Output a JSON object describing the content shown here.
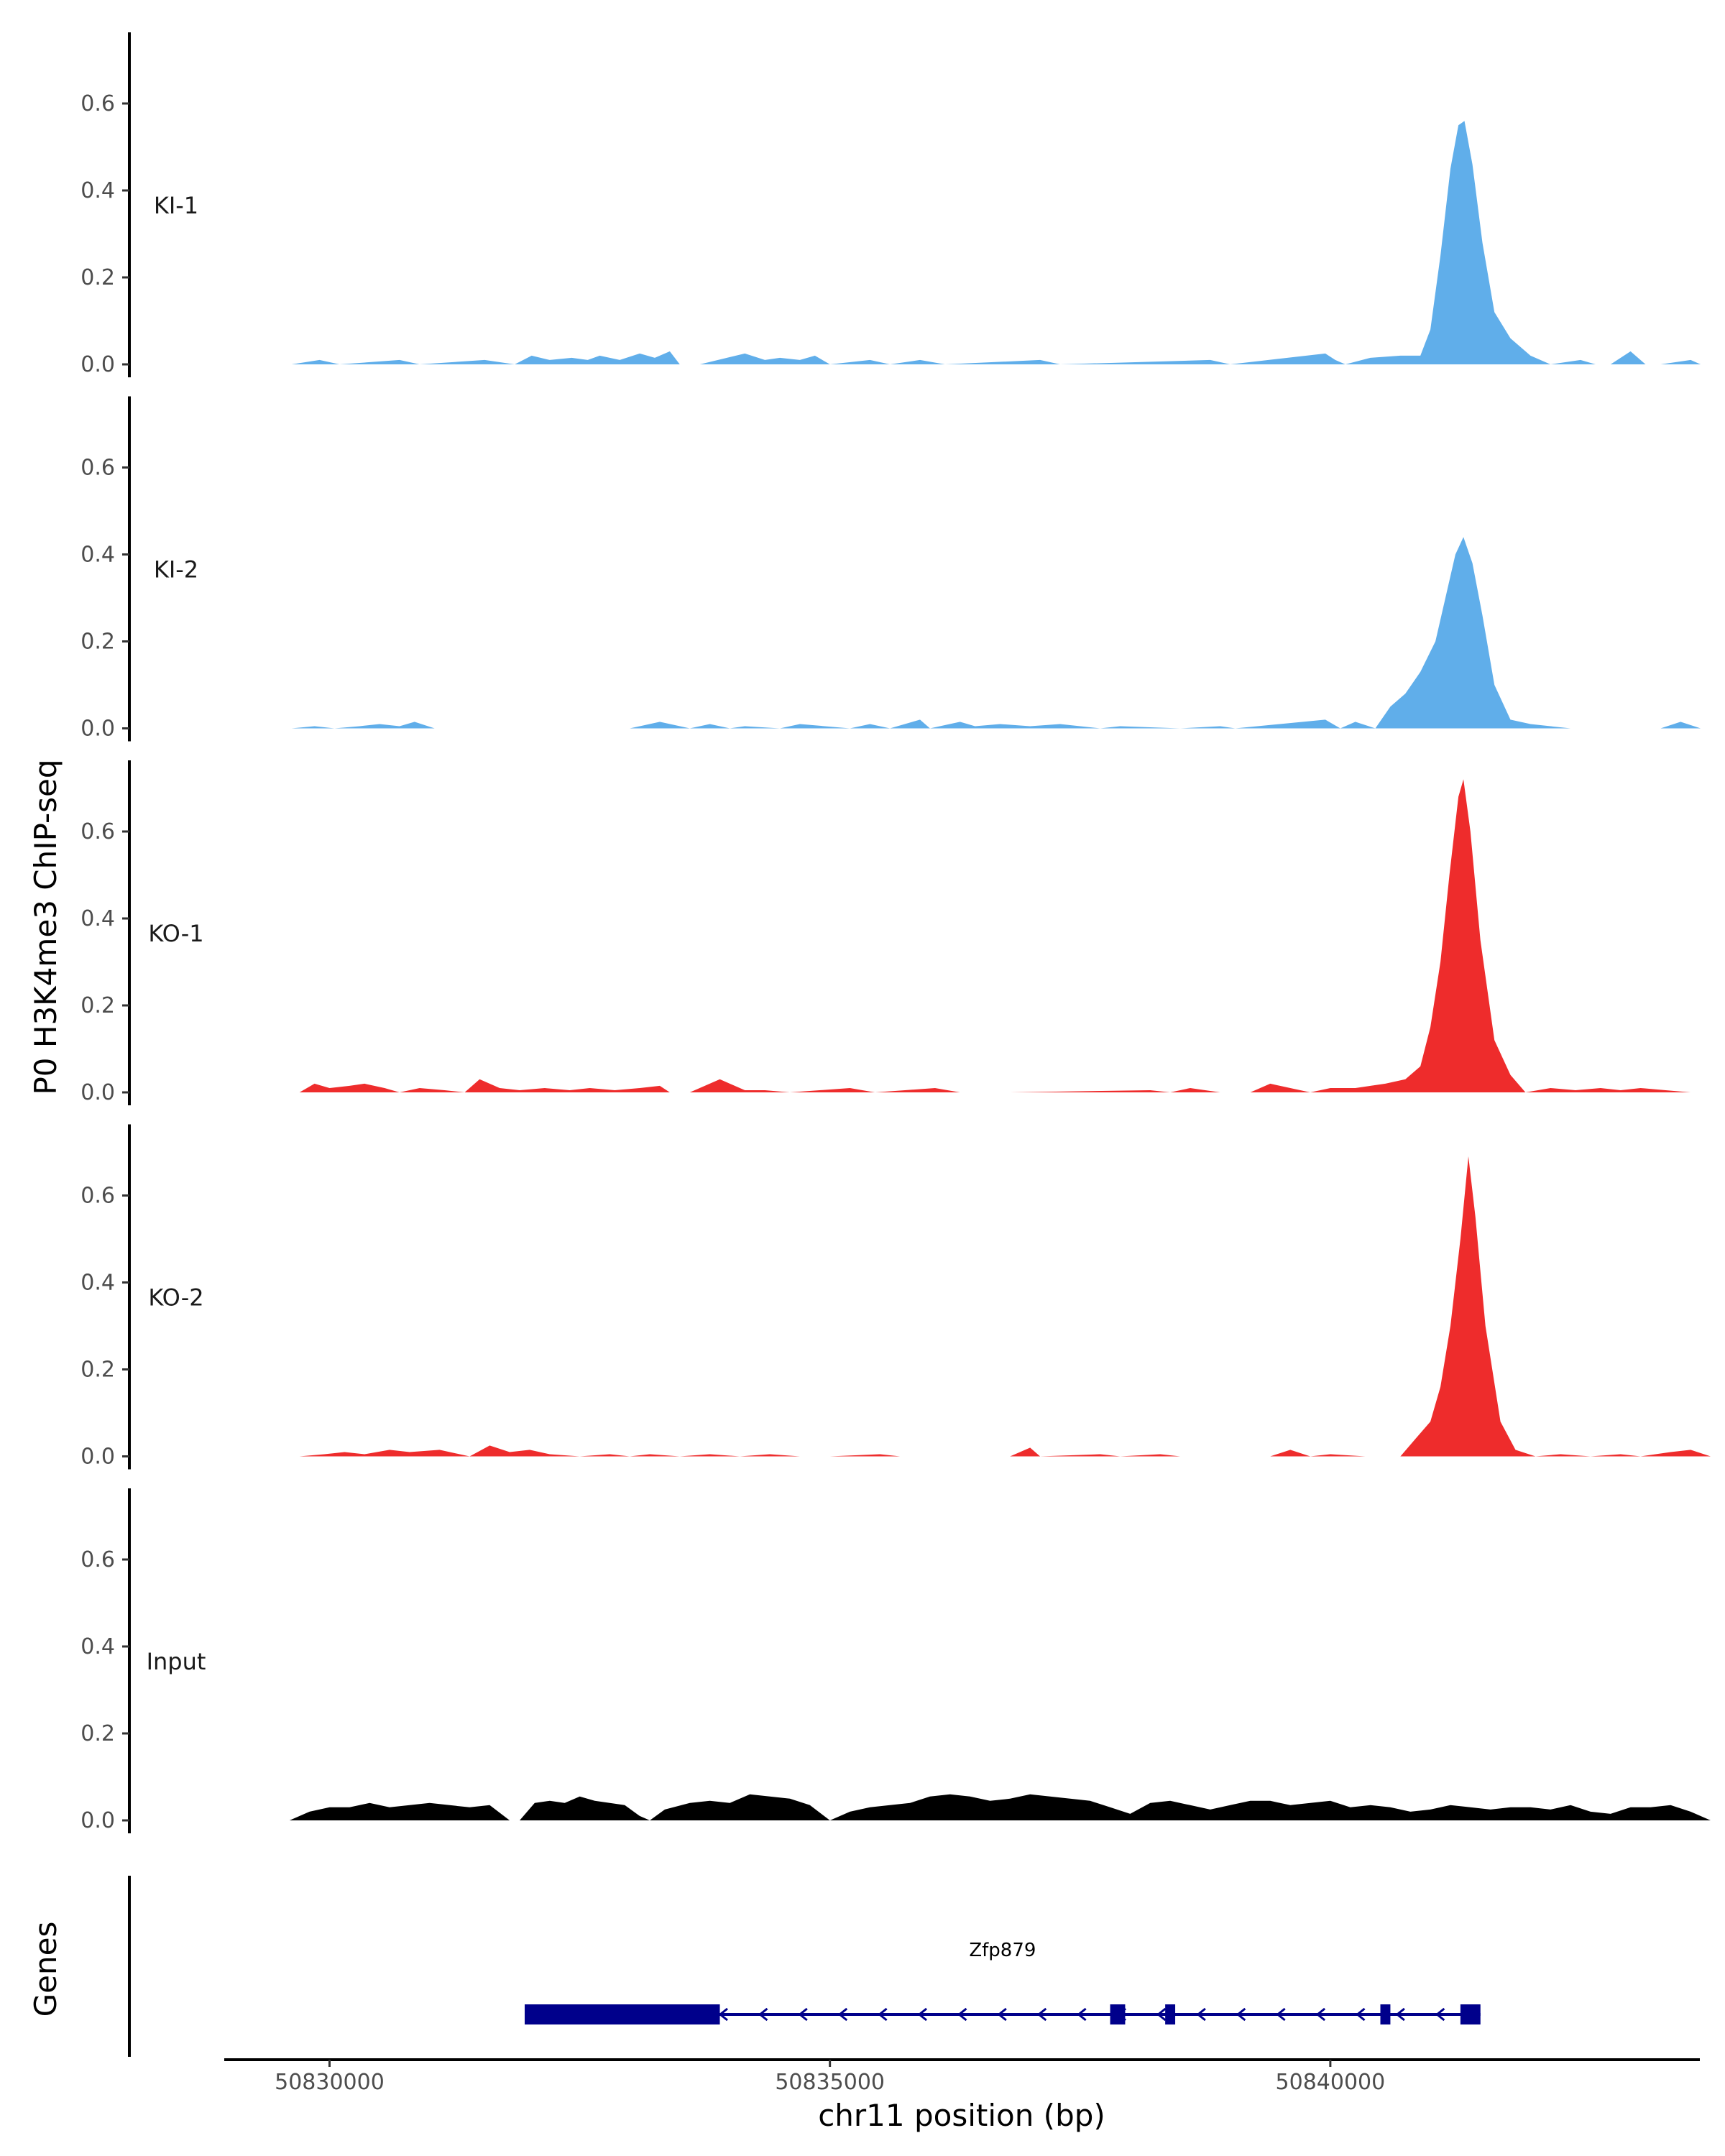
{
  "chart_data": {
    "type": "area",
    "ylabel": "P0 H3K4me3 ChIP-seq",
    "xlabel": "chr11 position (bp)",
    "genes_label": "Genes",
    "xlim": [
      50828000,
      50843800
    ],
    "ylim": [
      0,
      0.75
    ],
    "x_ticks": [
      50830000,
      50835000,
      50840000
    ],
    "x_tick_labels": [
      "50830000",
      "50835000",
      "50840000"
    ],
    "y_ticks": [
      0.0,
      0.2,
      0.4,
      0.6
    ],
    "y_tick_labels": [
      "0.0",
      "0.2",
      "0.4",
      "0.6"
    ],
    "tracks": [
      {
        "name": "KI-1",
        "color": "#60aeea",
        "x": [
          50829620,
          50829900,
          50830100,
          50830700,
          50830900,
          50831550,
          50831850,
          50832020,
          50832200,
          50832420,
          50832580,
          50832700,
          50832900,
          50833100,
          50833250,
          50833400,
          50833500,
          50833550,
          50833700,
          50834150,
          50834350,
          50834500,
          50834700,
          50834850,
          50835000,
          50835400,
          50835600,
          50835900,
          50836150,
          50837100,
          50837300,
          50838800,
          50839000,
          50839950,
          50840050,
          50840150,
          50840400,
          50840700,
          50840900,
          50841000,
          50841100,
          50841200,
          50841280,
          50841340,
          50841420,
          50841520,
          50841640,
          50841800,
          50842000,
          50842200,
          50842500,
          50842650,
          50842800,
          50843000,
          50843150,
          50843300,
          50843600,
          50843700,
          50843800
        ],
        "y": [
          0.0,
          0.01,
          0.0,
          0.01,
          0.0,
          0.01,
          0.0,
          0.02,
          0.01,
          0.015,
          0.01,
          0.02,
          0.01,
          0.025,
          0.015,
          0.03,
          0.0,
          0.0,
          0.0,
          0.025,
          0.01,
          0.015,
          0.01,
          0.02,
          0.0,
          0.01,
          0.0,
          0.01,
          0.0,
          0.01,
          0.0,
          0.01,
          0.0,
          0.025,
          0.01,
          0.0,
          0.015,
          0.02,
          0.02,
          0.08,
          0.25,
          0.45,
          0.55,
          0.56,
          0.46,
          0.28,
          0.12,
          0.06,
          0.02,
          0.0,
          0.01,
          0.0,
          0.0,
          0.03,
          0.0,
          0.0,
          0.01,
          0.0,
          0.0
        ]
      },
      {
        "name": "KI-2",
        "color": "#60aeea",
        "x": [
          50829620,
          50829850,
          50830050,
          50830300,
          50830500,
          50830700,
          50830850,
          50831050,
          50831700,
          50831850,
          50832200,
          50832400,
          50832700,
          50832850,
          50833000,
          50833300,
          50833600,
          50833800,
          50834000,
          50834150,
          50834500,
          50834700,
          50835200,
          50835400,
          50835600,
          50835900,
          50836000,
          50836300,
          50836450,
          50836700,
          50837000,
          50837300,
          50837700,
          50837900,
          50838500,
          50838900,
          50839050,
          50839950,
          50840100,
          50840250,
          50840450,
          50840600,
          50840750,
          50840900,
          50841050,
          50841150,
          50841250,
          50841330,
          50841420,
          50841520,
          50841640,
          50841800,
          50842000,
          50842200,
          50842400,
          50842600,
          50843300,
          50843500,
          50843700
        ],
        "y": [
          0.0,
          0.005,
          0.0,
          0.005,
          0.01,
          0.005,
          0.015,
          0.0,
          0.0,
          0.0,
          0.0,
          0.0,
          0.0,
          0.0,
          0.0,
          0.015,
          0.0,
          0.01,
          0.0,
          0.005,
          0.0,
          0.01,
          0.0,
          0.01,
          0.0,
          0.02,
          0.0,
          0.015,
          0.005,
          0.01,
          0.005,
          0.01,
          0.0,
          0.005,
          0.0,
          0.005,
          0.0,
          0.02,
          0.0,
          0.015,
          0.0,
          0.05,
          0.08,
          0.13,
          0.2,
          0.3,
          0.4,
          0.44,
          0.38,
          0.26,
          0.1,
          0.02,
          0.01,
          0.005,
          0.0,
          0.0,
          0.0,
          0.015,
          0.0
        ]
      },
      {
        "name": "KO-1",
        "color": "#ee2c2c",
        "x": [
          50829700,
          50829850,
          50830000,
          50830200,
          50830350,
          50830550,
          50830700,
          50830900,
          50831150,
          50831350,
          50831500,
          50831700,
          50831900,
          50832150,
          50832400,
          50832600,
          50832850,
          50833100,
          50833300,
          50833400,
          50833600,
          50833900,
          50834000,
          50834150,
          50834350,
          50834600,
          50835200,
          50835450,
          50835750,
          50836050,
          50836300,
          50836500,
          50836800,
          50838200,
          50838400,
          50838600,
          50838900,
          50839200,
          50839400,
          50839600,
          50839800,
          50840000,
          50840250,
          50840550,
          50840750,
          50840900,
          50841000,
          50841100,
          50841190,
          50841280,
          50841330,
          50841400,
          50841500,
          50841640,
          50841800,
          50841950,
          50842200,
          50842450,
          50842700,
          50842900,
          50843100,
          50843350,
          50843600,
          50843800
        ],
        "y": [
          0.0,
          0.02,
          0.01,
          0.015,
          0.02,
          0.01,
          0.0,
          0.01,
          0.005,
          0.0,
          0.03,
          0.01,
          0.005,
          0.01,
          0.005,
          0.01,
          0.005,
          0.01,
          0.015,
          0.0,
          0.0,
          0.03,
          0.02,
          0.005,
          0.005,
          0.0,
          0.01,
          0.0,
          0.005,
          0.01,
          0.0,
          0.0,
          0.0,
          0.005,
          0.0,
          0.01,
          0.0,
          0.0,
          0.02,
          0.01,
          0.0,
          0.01,
          0.01,
          0.02,
          0.03,
          0.06,
          0.15,
          0.3,
          0.5,
          0.68,
          0.72,
          0.6,
          0.35,
          0.12,
          0.04,
          0.0,
          0.01,
          0.005,
          0.01,
          0.005,
          0.01,
          0.005,
          0.0,
          0.0
        ]
      },
      {
        "name": "KO-2",
        "color": "#ee2c2c",
        "x": [
          50829700,
          50829950,
          50830150,
          50830350,
          50830600,
          50830800,
          50831100,
          50831400,
          50831600,
          50831800,
          50832000,
          50832200,
          50832500,
          50832800,
          50833000,
          50833200,
          50833500,
          50833800,
          50834100,
          50834400,
          50834700,
          50835000,
          50835500,
          50835700,
          50835900,
          50836800,
          50837000,
          50837100,
          50837700,
          50837900,
          50838300,
          50838500,
          50839400,
          50839600,
          50839800,
          50840000,
          50840350,
          50840700,
          50840850,
          50841000,
          50841100,
          50841200,
          50841300,
          50841380,
          50841450,
          50841550,
          50841700,
          50841850,
          50842050,
          50842300,
          50842600,
          50842900,
          50843100,
          50843400,
          50843600,
          50843800
        ],
        "y": [
          0.0,
          0.005,
          0.01,
          0.005,
          0.015,
          0.01,
          0.015,
          0.0,
          0.025,
          0.01,
          0.015,
          0.005,
          0.0,
          0.005,
          0.0,
          0.005,
          0.0,
          0.005,
          0.0,
          0.005,
          0.0,
          0.0,
          0.005,
          0.0,
          0.0,
          0.0,
          0.02,
          0.0,
          0.005,
          0.0,
          0.005,
          0.0,
          0.0,
          0.015,
          0.0,
          0.005,
          0.0,
          0.0,
          0.04,
          0.08,
          0.16,
          0.3,
          0.5,
          0.69,
          0.55,
          0.3,
          0.08,
          0.015,
          0.0,
          0.005,
          0.0,
          0.005,
          0.0,
          0.01,
          0.015,
          0.0
        ]
      },
      {
        "name": "Input",
        "color": "#000000",
        "x": [
          50829600,
          50829800,
          50830000,
          50830200,
          50830400,
          50830600,
          50830800,
          50831000,
          50831200,
          50831400,
          50831600,
          50831800,
          50831900,
          50832050,
          50832200,
          50832350,
          50832500,
          50832650,
          50832800,
          50832950,
          50833100,
          50833200,
          50833350,
          50833600,
          50833800,
          50834000,
          50834200,
          50834400,
          50834600,
          50834800,
          50835000,
          50835200,
          50835400,
          50835600,
          50835800,
          50836000,
          50836200,
          50836400,
          50836600,
          50836800,
          50837000,
          50837200,
          50837400,
          50837600,
          50837800,
          50838000,
          50838200,
          50838400,
          50838600,
          50838800,
          50839000,
          50839200,
          50839400,
          50839600,
          50839800,
          50840000,
          50840200,
          50840400,
          50840600,
          50840800,
          50841000,
          50841200,
          50841400,
          50841600,
          50841800,
          50842000,
          50842200,
          50842400,
          50842600,
          50842800,
          50843000,
          50843200,
          50843400,
          50843600,
          50843800
        ],
        "y": [
          0.0,
          0.02,
          0.03,
          0.03,
          0.04,
          0.03,
          0.035,
          0.04,
          0.035,
          0.03,
          0.035,
          0.0,
          0.0,
          0.04,
          0.045,
          0.04,
          0.055,
          0.045,
          0.04,
          0.035,
          0.01,
          0.0,
          0.025,
          0.04,
          0.045,
          0.04,
          0.06,
          0.055,
          0.05,
          0.035,
          0.0,
          0.02,
          0.03,
          0.035,
          0.04,
          0.055,
          0.06,
          0.055,
          0.045,
          0.05,
          0.06,
          0.055,
          0.05,
          0.045,
          0.03,
          0.015,
          0.04,
          0.045,
          0.035,
          0.025,
          0.035,
          0.045,
          0.045,
          0.035,
          0.04,
          0.045,
          0.03,
          0.035,
          0.03,
          0.02,
          0.025,
          0.035,
          0.03,
          0.025,
          0.03,
          0.03,
          0.025,
          0.035,
          0.02,
          0.015,
          0.03,
          0.03,
          0.035,
          0.02,
          0.0
        ]
      }
    ],
    "gene": {
      "name": "Zfp879",
      "color": "#00008b",
      "strand": "-",
      "start": 50831950,
      "end": 50841500,
      "exons": [
        [
          50831950,
          50833900
        ],
        [
          50837800,
          50837950
        ],
        [
          50838350,
          50838450
        ],
        [
          50840500,
          50840600
        ],
        [
          50841300,
          50841500
        ]
      ]
    }
  }
}
